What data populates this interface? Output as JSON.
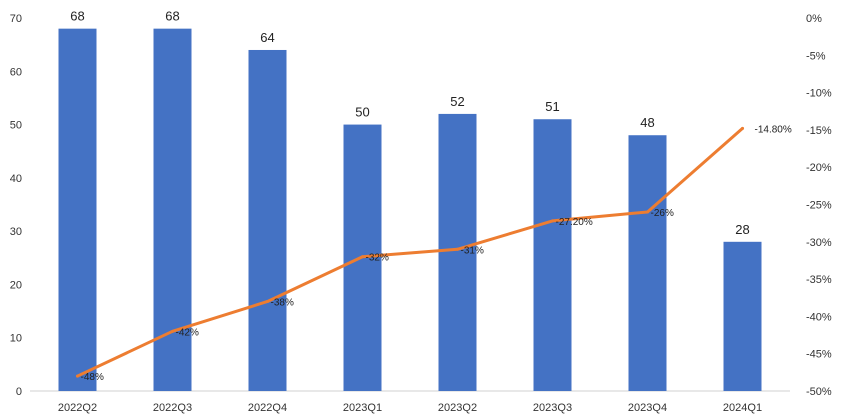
{
  "chart_data": {
    "type": "bar",
    "title": "",
    "xlabel": "",
    "ylabel": "",
    "categories": [
      "2022Q2",
      "2022Q3",
      "2022Q4",
      "2023Q1",
      "2023Q2",
      "2023Q3",
      "2023Q4",
      "2024Q1"
    ],
    "series": [
      {
        "type": "bar",
        "axis": "left",
        "color": "#4472C4",
        "values": [
          68,
          68,
          64,
          50,
          52,
          51,
          48,
          28
        ],
        "labels": [
          "68",
          "68",
          "64",
          "50",
          "52",
          "51",
          "48",
          "28"
        ]
      },
      {
        "type": "line",
        "axis": "right",
        "color": "#ED7D31",
        "values": [
          -48,
          -42,
          -38,
          -32,
          -31,
          -27.2,
          -26,
          -14.8
        ],
        "labels": [
          "-48%",
          "-42%",
          "-38%",
          "-32%",
          "-31%",
          "-27.20%",
          "-26%",
          "-14.80%"
        ]
      }
    ],
    "y_left": {
      "min": 0,
      "max": 70,
      "ticks": [
        "0",
        "10",
        "20",
        "30",
        "40",
        "50",
        "60",
        "70"
      ]
    },
    "y_right": {
      "min": -50,
      "max": 0,
      "ticks": [
        "0%",
        "-5%",
        "-10%",
        "-15%",
        "-20%",
        "-25%",
        "-30%",
        "-35%",
        "-40%",
        "-45%",
        "-50%"
      ]
    },
    "grid": false,
    "legend": "none"
  }
}
